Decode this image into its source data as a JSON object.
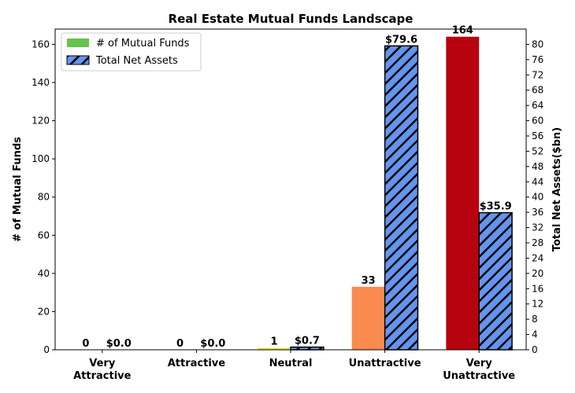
{
  "chart_data": {
    "type": "bar",
    "title": "Real Estate Mutual Funds Landscape",
    "categories": [
      [
        "Very",
        "Attractive"
      ],
      [
        "Attractive"
      ],
      [
        "Neutral"
      ],
      [
        "Unattractive"
      ],
      [
        "Very",
        "Unattractive"
      ]
    ],
    "series": [
      {
        "name": "# of Mutual Funds",
        "axis": "left",
        "values": [
          0,
          0,
          1,
          33,
          164
        ],
        "labels": [
          "0",
          "0",
          "1",
          "33",
          "164"
        ],
        "colors": [
          "#66c24f",
          "#b5d334",
          "#f0e442",
          "#f98a50",
          "#b7020f"
        ],
        "legend_color": "#66c24f"
      },
      {
        "name": "Total Net Assets",
        "axis": "right",
        "values": [
          0.0,
          0.0,
          0.7,
          79.6,
          35.9
        ],
        "labels": [
          "$0.0",
          "$0.0",
          "$0.7",
          "$79.6",
          "$35.9"
        ],
        "color": "#6495ed",
        "hatch": "diagonal"
      }
    ],
    "ylabel": "# of Mutual Funds",
    "ylabel_right": "Total Net Assets($bn)",
    "ylim": [
      0,
      168
    ],
    "ylim_right": [
      0,
      84
    ],
    "yticks": [
      0,
      20,
      40,
      60,
      80,
      100,
      120,
      140,
      160
    ],
    "yticks_right": [
      0,
      4,
      8,
      12,
      16,
      20,
      24,
      28,
      32,
      36,
      40,
      44,
      48,
      52,
      56,
      60,
      64,
      68,
      72,
      76,
      80
    ],
    "grid": false,
    "legend": "top-left"
  }
}
